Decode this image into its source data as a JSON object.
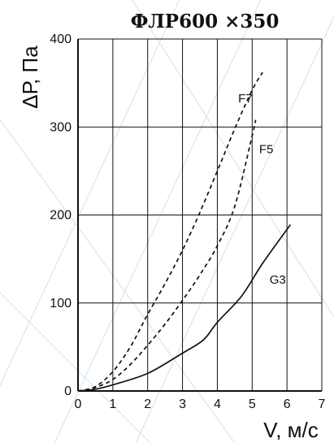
{
  "chart_data": {
    "type": "line",
    "title": "ФЛР600 ×350",
    "xlabel": "V, м/с",
    "ylabel": "ΔР, Па",
    "xlim": [
      0,
      7
    ],
    "ylim": [
      0,
      400
    ],
    "xticks": [
      "0",
      "1",
      "2",
      "3",
      "4",
      "5",
      "6",
      "7"
    ],
    "yticks": [
      "0",
      "100",
      "200",
      "300",
      "400"
    ],
    "grid": true,
    "colors": {
      "line": "#111111",
      "grid": "#111111",
      "background_lines": "#d6e6f2"
    },
    "series": [
      {
        "name": "F7",
        "style": "dashed",
        "x": [
          0,
          0.5,
          1,
          1.5,
          2,
          2.5,
          3,
          3.5,
          4,
          4.5,
          5,
          5.3
        ],
        "y": [
          0,
          5,
          22,
          50,
          87,
          122,
          160,
          203,
          250,
          298,
          342,
          362
        ]
      },
      {
        "name": "F5",
        "style": "dashed",
        "x": [
          0,
          0.5,
          1,
          1.5,
          2,
          2.5,
          3,
          3.5,
          4,
          4.5,
          5,
          5.1
        ],
        "y": [
          0,
          4,
          13,
          30,
          52,
          76,
          103,
          132,
          165,
          210,
          290,
          308
        ]
      },
      {
        "name": "G3",
        "style": "solid",
        "x": [
          0,
          0.5,
          1,
          2,
          3,
          3.6,
          4,
          4.7,
          5.3,
          6.1
        ],
        "y": [
          0,
          2,
          7,
          20,
          43,
          58,
          78,
          108,
          145,
          189
        ]
      }
    ]
  }
}
